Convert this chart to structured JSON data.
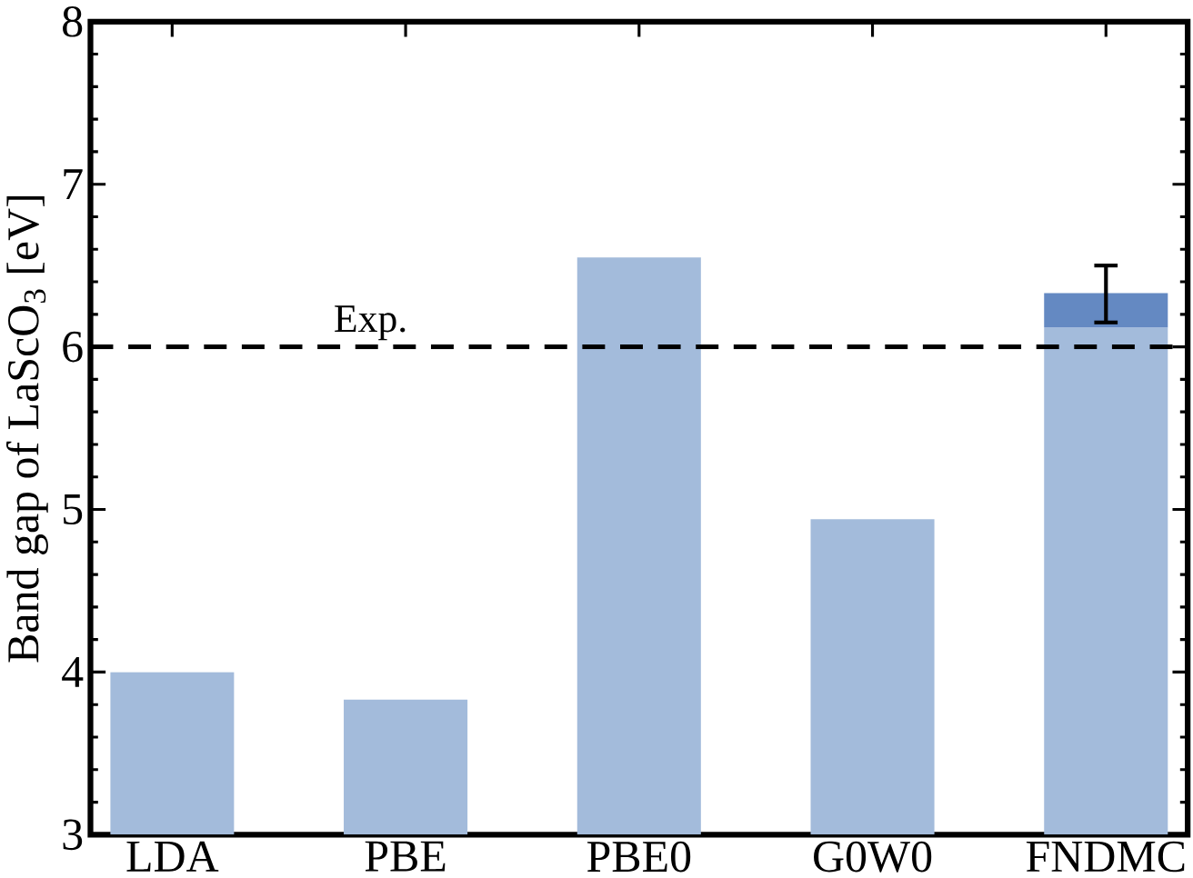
{
  "chart_data": {
    "type": "bar",
    "ylabel": "Band gap of LaScO$_{3}$ [eV]",
    "categories": [
      "LDA",
      "PBE",
      "PBE0",
      "G0W0",
      "FNDMC"
    ],
    "series": [
      {
        "color": "#a3bbdb",
        "values": [
          4.0,
          3.83,
          6.55,
          4.94,
          6.12
        ]
      },
      {
        "color": "#6489c2",
        "values": [
          null,
          null,
          null,
          null,
          0.21
        ],
        "base": [
          null,
          null,
          null,
          null,
          6.12
        ],
        "errors": [
          null,
          null,
          null,
          null,
          [
            6.15,
            6.5
          ]
        ]
      }
    ],
    "ylim": [
      3,
      8
    ],
    "yticks": [
      3,
      4,
      5,
      6,
      7,
      8
    ],
    "ref_lines": [
      {
        "axis": "y",
        "value": 6,
        "label": "Exp.",
        "line_style": "dashed",
        "color": "#000000"
      }
    ],
    "grid": false
  }
}
